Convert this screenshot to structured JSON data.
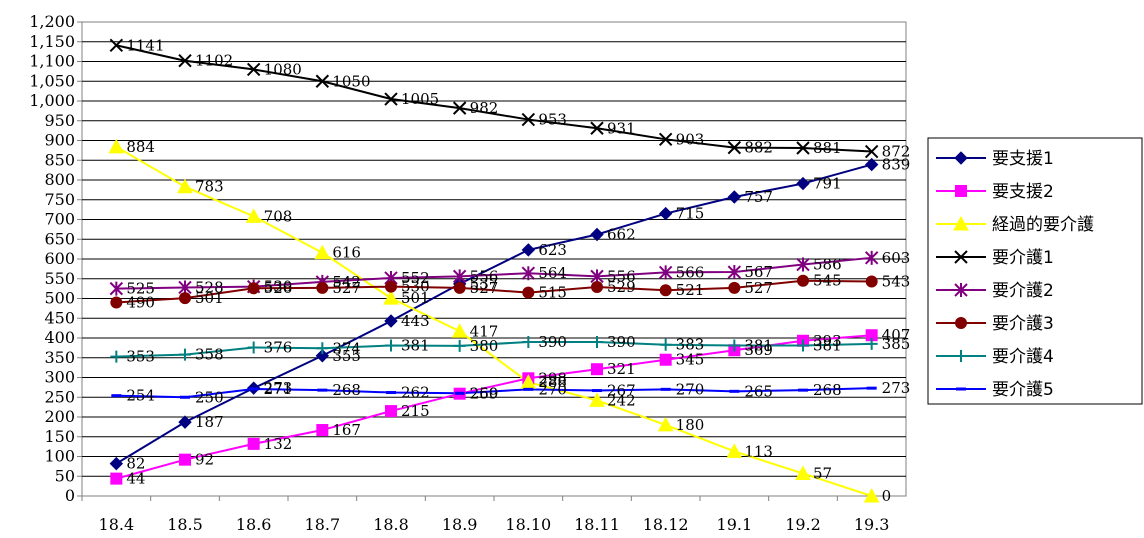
{
  "chart_data": {
    "type": "line",
    "title": "",
    "xlabel": "",
    "ylabel": "",
    "categories": [
      "18.4",
      "18.5",
      "18.6",
      "18.7",
      "18.8",
      "18.9",
      "18.10",
      "18.11",
      "18.12",
      "19.1",
      "19.2",
      "19.3"
    ],
    "ylim": [
      0,
      1200
    ],
    "ytick_step": 50,
    "grid": "horizontal",
    "legend_position": "right",
    "series": [
      {
        "name": "要支援1",
        "color": "#000080",
        "marker": "diamond",
        "values": [
          82,
          187,
          273,
          355,
          443,
          537,
          623,
          662,
          715,
          757,
          791,
          839
        ]
      },
      {
        "name": "要支援2",
        "color": "#FF00FF",
        "marker": "square",
        "values": [
          44,
          92,
          132,
          167,
          215,
          259,
          298,
          321,
          345,
          369,
          393,
          407
        ]
      },
      {
        "name": "経過的要介護",
        "color": "#FFFF00",
        "marker": "triangle",
        "values": [
          884,
          783,
          708,
          616,
          501,
          417,
          288,
          242,
          180,
          113,
          57,
          0
        ]
      },
      {
        "name": "要介護1",
        "color": "#000000",
        "marker": "x",
        "values": [
          1141,
          1102,
          1080,
          1050,
          1005,
          982,
          953,
          931,
          903,
          882,
          881,
          872
        ]
      },
      {
        "name": "要介護2",
        "color": "#800080",
        "marker": "star",
        "values": [
          525,
          528,
          530,
          542,
          552,
          556,
          564,
          556,
          566,
          567,
          586,
          603
        ]
      },
      {
        "name": "要介護3",
        "color": "#800000",
        "marker": "circle",
        "values": [
          490,
          501,
          526,
          527,
          530,
          527,
          515,
          529,
          521,
          527,
          545,
          543
        ]
      },
      {
        "name": "要介護4",
        "color": "#008080",
        "marker": "plus",
        "values": [
          353,
          358,
          376,
          374,
          381,
          380,
          390,
          390,
          383,
          381,
          381,
          385
        ]
      },
      {
        "name": "要介護5",
        "color": "#0000FF",
        "marker": "dash",
        "values": [
          254,
          250,
          271,
          268,
          262,
          260,
          270,
          267,
          270,
          265,
          268,
          273
        ]
      }
    ]
  }
}
